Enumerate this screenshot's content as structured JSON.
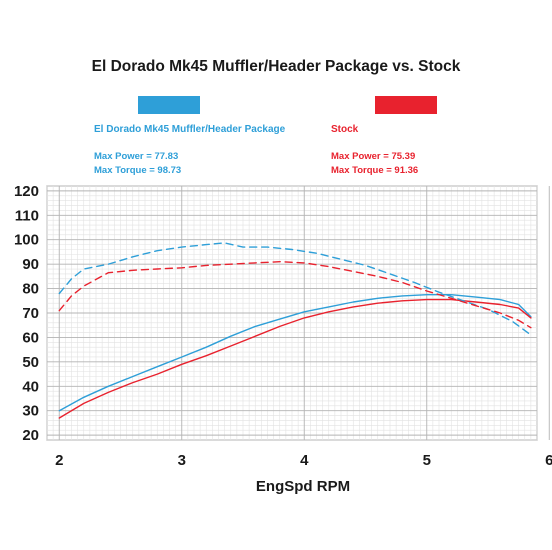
{
  "chart_data": {
    "type": "line",
    "title": "El Dorado Mk45  Muffler/Header Package vs. Stock",
    "xlabel": "EngSpd RPM",
    "ylabel": "",
    "xlim": [
      1.9,
      5.9
    ],
    "ylim": [
      18,
      122
    ],
    "x_ticks": [
      "2",
      "3",
      "4",
      "5",
      "6"
    ],
    "y_ticks": [
      "20",
      "30",
      "40",
      "50",
      "60",
      "70",
      "80",
      "90",
      "100",
      "110",
      "120"
    ],
    "grid": true,
    "legend": [
      {
        "name": "El Dorado Mk45 Muffler/Header Package",
        "color": "#2e9fd8",
        "max_power_label": "Max Power  = 77.83",
        "max_torque_label": "Max Torque = 98.73"
      },
      {
        "name": "Stock",
        "color": "#e8222e",
        "max_power_label": "Max Power  = 75.39",
        "max_torque_label": "Max Torque = 91.36"
      }
    ],
    "series": [
      {
        "name": "El Dorado Mk45 Muffler/Header Package",
        "metric": "power",
        "style": "solid",
        "color": "#2e9fd8",
        "x": [
          2.0,
          2.2,
          2.4,
          2.6,
          2.8,
          3.0,
          3.2,
          3.4,
          3.6,
          3.8,
          4.0,
          4.2,
          4.4,
          4.6,
          4.8,
          5.0,
          5.2,
          5.4,
          5.6,
          5.75,
          5.85
        ],
        "values": [
          30,
          35.5,
          40,
          44,
          48,
          52,
          56,
          60.5,
          64.5,
          67.5,
          70.5,
          72.5,
          74.5,
          76,
          77,
          77.5,
          77.5,
          76.5,
          75.5,
          73.5,
          68.5
        ]
      },
      {
        "name": "Stock",
        "metric": "power",
        "style": "solid",
        "color": "#e8222e",
        "x": [
          2.0,
          2.2,
          2.4,
          2.6,
          2.8,
          3.0,
          3.2,
          3.4,
          3.6,
          3.8,
          4.0,
          4.2,
          4.4,
          4.6,
          4.8,
          5.0,
          5.2,
          5.4,
          5.6,
          5.75,
          5.85
        ],
        "values": [
          27,
          33,
          37.5,
          41.5,
          45,
          49,
          52.5,
          56.5,
          60.5,
          64.5,
          68,
          70.5,
          72.5,
          74,
          75,
          75.5,
          75.5,
          74.5,
          73.5,
          72,
          68
        ]
      },
      {
        "name": "El Dorado Mk45 Muffler/Header Package",
        "metric": "torque",
        "style": "dashed",
        "color": "#2e9fd8",
        "x": [
          2.0,
          2.1,
          2.2,
          2.4,
          2.6,
          2.8,
          3.0,
          3.2,
          3.35,
          3.5,
          3.7,
          3.9,
          4.1,
          4.3,
          4.5,
          4.7,
          4.9,
          5.1,
          5.3,
          5.5,
          5.7,
          5.85
        ],
        "values": [
          78,
          84,
          88,
          90,
          93,
          95.5,
          97,
          98,
          98.7,
          97,
          97,
          96,
          94.5,
          92,
          89.5,
          86,
          82.5,
          78.5,
          75,
          71.5,
          66.5,
          61
        ]
      },
      {
        "name": "Stock",
        "metric": "torque",
        "style": "dashed",
        "color": "#e8222e",
        "x": [
          2.0,
          2.1,
          2.2,
          2.4,
          2.6,
          2.8,
          3.0,
          3.2,
          3.4,
          3.6,
          3.8,
          4.0,
          4.2,
          4.4,
          4.6,
          4.8,
          5.0,
          5.2,
          5.4,
          5.6,
          5.75,
          5.85
        ],
        "values": [
          71,
          77,
          81,
          86.5,
          87.5,
          88,
          88.5,
          89.5,
          90,
          90.5,
          91,
          90.5,
          89,
          87,
          85,
          82.5,
          79,
          76,
          73,
          70,
          67,
          64
        ]
      }
    ]
  }
}
